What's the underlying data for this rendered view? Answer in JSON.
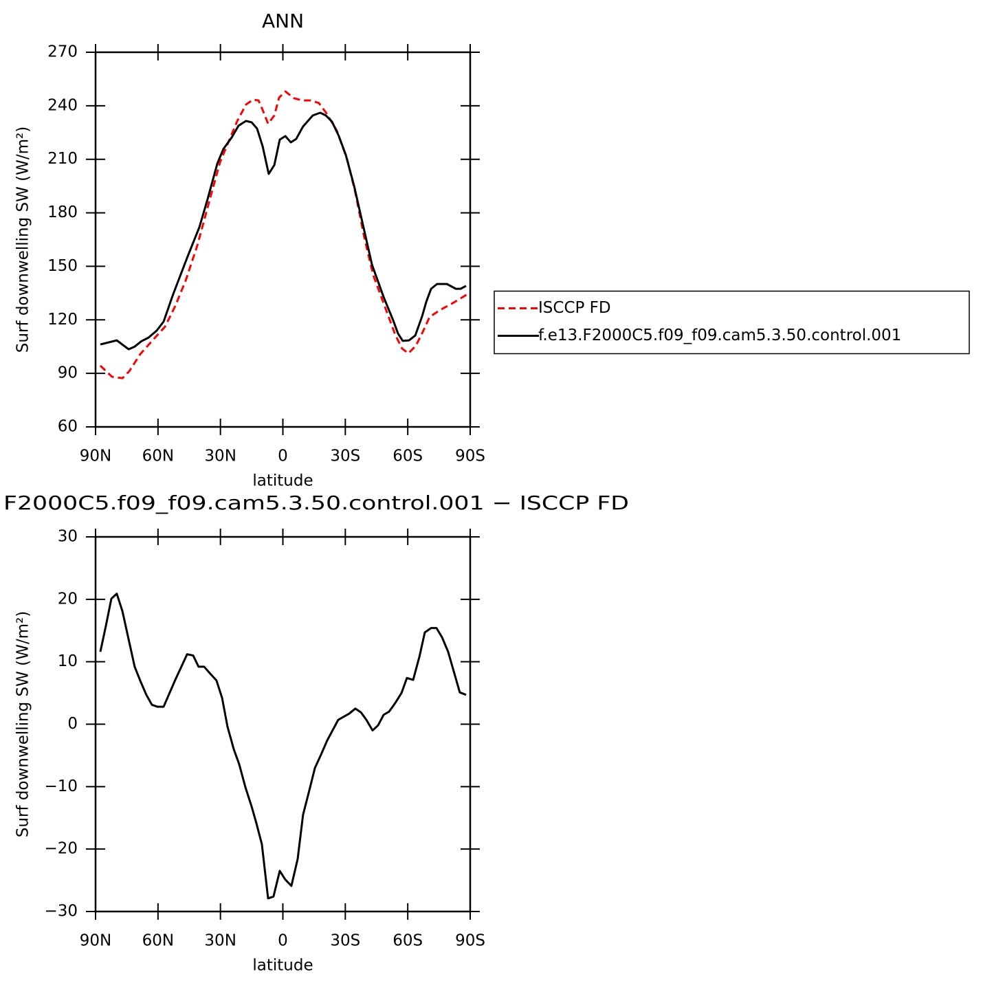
{
  "chart_data": [
    {
      "type": "line",
      "title": "ANN",
      "xlabel": "latitude",
      "ylabel": "Surf downwelling SW (W/m²)",
      "xlim": [
        90,
        -90
      ],
      "xticks": [
        {
          "value": 90,
          "label": "90N"
        },
        {
          "value": 60,
          "label": "60N"
        },
        {
          "value": 30,
          "label": "30N"
        },
        0,
        {
          "value": -30,
          "label": "30S"
        },
        {
          "value": -60,
          "label": "60S"
        },
        {
          "value": -90,
          "label": "90S"
        }
      ],
      "ylim": [
        60,
        270
      ],
      "yticks": [
        60,
        90,
        120,
        150,
        180,
        210,
        240,
        270
      ],
      "legend": "outside-right",
      "series": [
        {
          "name": "ISCCP FD",
          "color": "#ff0000",
          "dash": "dashed",
          "x": [
            87.7,
            82.1,
            77.1,
            73.8,
            68.5,
            62.6,
            56.6,
            51.7,
            46.7,
            41.1,
            35.2,
            30.2,
            26.9,
            21.9,
            17.7,
            14.3,
            11.7,
            9.7,
            7.1,
            4.1,
            1.8,
            -1.2,
            -5.4,
            -9.4,
            -13.4,
            -17.3,
            -21,
            -25.9,
            -30.9,
            -34.8,
            -39.1,
            -43.4,
            -49,
            -54,
            -57.3,
            -60.3,
            -63.9,
            -67.2,
            -70.5,
            -75.5,
            -82.1,
            -88.7
          ],
          "values": [
            94.3,
            88.1,
            87.3,
            91.2,
            100.8,
            108.5,
            116.2,
            127.8,
            142,
            161.7,
            187.1,
            208.3,
            217.6,
            231.5,
            240.7,
            243.4,
            243,
            237.6,
            229.9,
            234.6,
            244.6,
            248,
            244.2,
            243,
            243,
            241.5,
            235.7,
            226.1,
            209.9,
            191.4,
            166.3,
            145.1,
            127.4,
            111.6,
            103.9,
            101.2,
            105.5,
            113.2,
            121.6,
            125.5,
            129.7,
            134.4
          ]
        },
        {
          "name": "f.e13.F2000C5.f09_f09.cam5.3.50.control.001",
          "color": "#000000",
          "dash": "solid",
          "x": [
            87.7,
            79.8,
            74.1,
            71.2,
            68,
            64.6,
            60.6,
            57.3,
            52.7,
            46,
            40.1,
            36.2,
            31.5,
            28.6,
            24.6,
            21.3,
            17.7,
            15,
            12.4,
            9.7,
            6.8,
            4.1,
            1.5,
            -1.2,
            -3.8,
            -6.4,
            -9.7,
            -14.4,
            -18,
            -20.6,
            -23.6,
            -26.9,
            -30.2,
            -34.2,
            -38.1,
            -42.8,
            -48.4,
            -53,
            -55.3,
            -57.6,
            -60.6,
            -63.6,
            -66.9,
            -68.9,
            -71.2,
            -74.1,
            -78.8,
            -83.1,
            -85.4,
            -88
          ],
          "values": [
            106.2,
            108.5,
            103.5,
            105,
            108,
            110,
            114,
            119,
            134.4,
            154.8,
            172,
            187.5,
            207.6,
            215.7,
            222.2,
            228.8,
            231.5,
            230.7,
            227.2,
            217.2,
            201.8,
            206.8,
            221,
            223,
            219.5,
            221.4,
            228.4,
            234.6,
            236.1,
            234.6,
            231.1,
            223,
            212.6,
            195.2,
            175.2,
            151,
            132.8,
            119.7,
            112.4,
            108.2,
            108.5,
            111.2,
            122,
            130.1,
            137.4,
            140.1,
            140.1,
            137.4,
            137.4,
            139
          ]
        }
      ]
    },
    {
      "type": "line",
      "title": "F2000C5.f09_f09.cam5.3.50.control.001 − ISCCP FD",
      "xlabel": "latitude",
      "ylabel": "Surf downwelling SW (W/m²)",
      "xlim": [
        90,
        -90
      ],
      "xticks": [
        {
          "value": 90,
          "label": "90N"
        },
        {
          "value": 60,
          "label": "60N"
        },
        {
          "value": 30,
          "label": "30N"
        },
        0,
        {
          "value": -30,
          "label": "30S"
        },
        {
          "value": -60,
          "label": "60S"
        },
        {
          "value": -90,
          "label": "90S"
        }
      ],
      "ylim": [
        -30,
        30
      ],
      "yticks": [
        {
          "value": -30,
          "label": "−30"
        },
        {
          "value": -20,
          "label": "−20"
        },
        {
          "value": -10,
          "label": "−10"
        },
        0,
        10,
        20,
        30
      ],
      "series": [
        {
          "color": "#000000",
          "dash": "solid",
          "x": [
            87.7,
            85,
            82.4,
            79.8,
            77.1,
            71.2,
            68.2,
            65.6,
            62.9,
            60.3,
            57.3,
            51.7,
            46,
            43.1,
            40.5,
            37.8,
            35.2,
            31.9,
            29.2,
            26.6,
            23.6,
            21,
            18,
            15,
            12.7,
            10.1,
            7.1,
            4.5,
            1.5,
            -1.2,
            -4.1,
            -7.1,
            -9.7,
            -12.7,
            -15.4,
            -18.3,
            -21.3,
            -26.6,
            -31.9,
            -34.8,
            -37.5,
            -40.1,
            -43.1,
            -45.7,
            -48.4,
            -51,
            -54,
            -57,
            -59.6,
            -62.6,
            -65.6,
            -68.2,
            -71.2,
            -73.8,
            -76.5,
            -79.4,
            -85,
            -88
          ],
          "values": [
            11.6,
            15.8,
            20.1,
            20.9,
            18.1,
            9.2,
            6.7,
            4.7,
            3.1,
            2.8,
            2.8,
            7.1,
            11.2,
            11,
            9.2,
            9.2,
            8.2,
            7,
            4.2,
            -0.4,
            -4,
            -6.4,
            -10.1,
            -13.2,
            -15.9,
            -19.2,
            -27.9,
            -27.6,
            -23.5,
            -24.9,
            -25.9,
            -21.6,
            -14.5,
            -10.6,
            -7,
            -4.9,
            -2.6,
            0.7,
            1.7,
            2.5,
            1.9,
            0.7,
            -1,
            -0.2,
            1.5,
            2,
            3.4,
            5,
            7.4,
            7.1,
            10.8,
            14.7,
            15.4,
            15.4,
            13.9,
            11.6,
            5.1,
            4.7
          ]
        }
      ]
    }
  ]
}
